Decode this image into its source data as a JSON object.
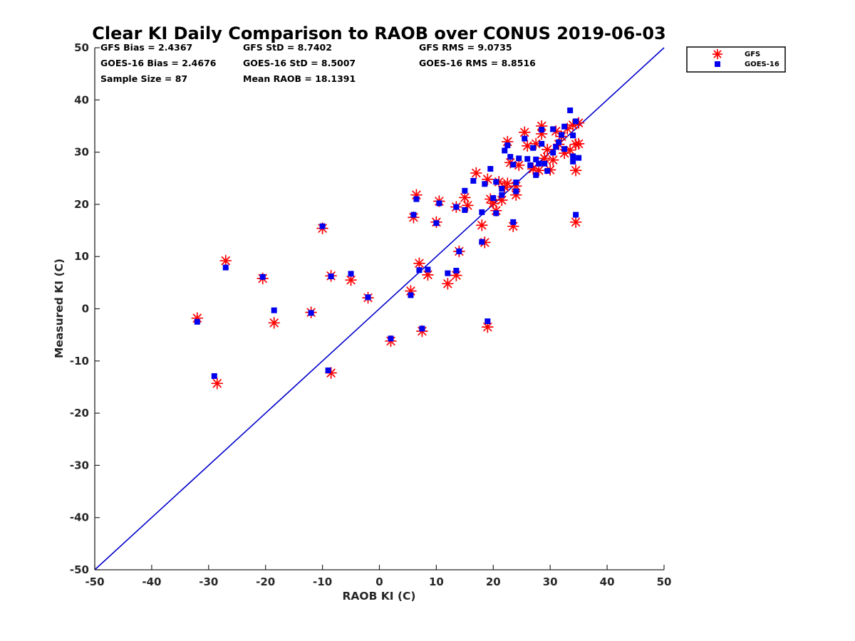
{
  "chart_data": {
    "type": "scatter",
    "title": "Clear KI Daily Comparison to RAOB over CONUS 2019-06-03",
    "xlabel": "RAOB KI (C)",
    "ylabel": "Measured KI (C)",
    "xlim": [
      -50,
      50
    ],
    "ylim": [
      -50,
      50
    ],
    "xticks": [
      "-50",
      "-40",
      "-30",
      "-20",
      "-10",
      "0",
      "10",
      "20",
      "30",
      "40",
      "50"
    ],
    "yticks": [
      "50",
      "40",
      "30",
      "20",
      "10",
      "0",
      "-10",
      "-20",
      "-30",
      "-40",
      "-50"
    ],
    "grid": false,
    "legend_position": "outside-top-right",
    "reference_line": {
      "type": "one-to-one",
      "color": "#0000cc"
    },
    "stats": {
      "gfs_bias": "GFS Bias = 2.4367",
      "gfs_std": "GFS StD = 8.7402",
      "gfs_rms": "GFS RMS = 9.0735",
      "goes_bias": "GOES-16 Bias = 2.4676",
      "goes_std": "GOES-16 StD = 8.5007",
      "goes_rms": "GOES-16 RMS = 8.8516",
      "sample_size": "Sample Size = 87",
      "mean_raob": "Mean RAOB = 18.1391"
    },
    "series": [
      {
        "name": "GFS",
        "marker": "asterisk",
        "color": "#ff0000",
        "points": [
          [
            -32,
            -1.8
          ],
          [
            -28.5,
            -14.3
          ],
          [
            -27,
            9.2
          ],
          [
            -20.5,
            5.8
          ],
          [
            -18.5,
            -2.7
          ],
          [
            -12,
            -0.7
          ],
          [
            -10,
            15.4
          ],
          [
            -8.5,
            -12.3
          ],
          [
            -8.5,
            6.3
          ],
          [
            -5,
            5.5
          ],
          [
            -2,
            2.1
          ],
          [
            2,
            -6.2
          ],
          [
            5.5,
            3.4
          ],
          [
            6,
            17.5
          ],
          [
            6.5,
            21.8
          ],
          [
            7,
            8.7
          ],
          [
            7.5,
            -4.3
          ],
          [
            8.5,
            6.5
          ],
          [
            10,
            16.6
          ],
          [
            10.5,
            20.6
          ],
          [
            12,
            4.8
          ],
          [
            13.5,
            19.5
          ],
          [
            13.5,
            6.4
          ],
          [
            14,
            11
          ],
          [
            15,
            21.3
          ],
          [
            15.5,
            19.8
          ],
          [
            17,
            26
          ],
          [
            18,
            16
          ],
          [
            18.5,
            12.7
          ],
          [
            19,
            24.8
          ],
          [
            19,
            -3.5
          ],
          [
            19.5,
            21
          ],
          [
            20,
            20.2
          ],
          [
            20.5,
            18.8
          ],
          [
            21,
            24.3
          ],
          [
            21.5,
            20.8
          ],
          [
            22,
            23.3
          ],
          [
            22.5,
            32
          ],
          [
            22.5,
            24
          ],
          [
            23,
            28
          ],
          [
            23.5,
            15.8
          ],
          [
            24,
            23.5
          ],
          [
            24,
            21.8
          ],
          [
            24.5,
            27.5
          ],
          [
            25.5,
            33.8
          ],
          [
            26,
            31.2
          ],
          [
            27,
            26.8
          ],
          [
            27.5,
            31.6
          ],
          [
            28,
            26.5
          ],
          [
            28.5,
            35
          ],
          [
            28.5,
            33.5
          ],
          [
            29,
            28.8
          ],
          [
            29.5,
            30.5
          ],
          [
            30,
            26.6
          ],
          [
            30.5,
            28.5
          ],
          [
            31,
            34
          ],
          [
            31.5,
            31.5
          ],
          [
            32,
            33
          ],
          [
            32.5,
            29.8
          ],
          [
            33,
            34.5
          ],
          [
            33.5,
            30.4
          ],
          [
            34,
            35.2
          ],
          [
            34.5,
            26.5
          ],
          [
            34.5,
            31.5
          ],
          [
            34.5,
            16.6
          ],
          [
            35,
            35.6
          ],
          [
            35,
            31.6
          ]
        ]
      },
      {
        "name": "GOES-16",
        "marker": "square",
        "color": "#0000ee",
        "points": [
          [
            -32,
            -2.5
          ],
          [
            -29,
            -12.9
          ],
          [
            -27,
            7.9
          ],
          [
            -20.5,
            6.1
          ],
          [
            -18.5,
            -0.3
          ],
          [
            -12,
            -0.8
          ],
          [
            -10,
            15.8
          ],
          [
            -9,
            -11.8
          ],
          [
            -8.5,
            6.2
          ],
          [
            -5,
            6.7
          ],
          [
            -2,
            2.2
          ],
          [
            2,
            -5.7
          ],
          [
            5.5,
            2.6
          ],
          [
            6,
            18
          ],
          [
            6.5,
            21
          ],
          [
            7,
            7.4
          ],
          [
            7.5,
            -3.8
          ],
          [
            8.5,
            7.5
          ],
          [
            10,
            16.4
          ],
          [
            10.5,
            20.2
          ],
          [
            12,
            6.8
          ],
          [
            13.5,
            19.5
          ],
          [
            13.5,
            7.3
          ],
          [
            14,
            11
          ],
          [
            15,
            22.6
          ],
          [
            15,
            18.9
          ],
          [
            16.5,
            24.5
          ],
          [
            18,
            18.5
          ],
          [
            18,
            12.8
          ],
          [
            18.5,
            23.9
          ],
          [
            19,
            -2.4
          ],
          [
            19.5,
            26.8
          ],
          [
            20,
            21.2
          ],
          [
            20.5,
            18.3
          ],
          [
            20.5,
            24.3
          ],
          [
            21.5,
            21.8
          ],
          [
            21.5,
            23
          ],
          [
            22,
            30.3
          ],
          [
            22.5,
            31.3
          ],
          [
            23,
            29.1
          ],
          [
            23.5,
            16.6
          ],
          [
            23.5,
            27.6
          ],
          [
            24,
            24.2
          ],
          [
            24,
            22.5
          ],
          [
            24.5,
            28.8
          ],
          [
            25.5,
            32.6
          ],
          [
            26,
            28.7
          ],
          [
            26.5,
            27.5
          ],
          [
            27,
            30.8
          ],
          [
            27.5,
            25.6
          ],
          [
            27.5,
            28.6
          ],
          [
            28,
            27.8
          ],
          [
            28.5,
            34.3
          ],
          [
            28.5,
            31.6
          ],
          [
            29,
            27.8
          ],
          [
            29.5,
            26.4
          ],
          [
            30.5,
            29.9
          ],
          [
            30.5,
            34.4
          ],
          [
            31,
            31
          ],
          [
            31.5,
            31.9
          ],
          [
            32,
            33.3
          ],
          [
            32.5,
            34.9
          ],
          [
            32.5,
            30.6
          ],
          [
            33.5,
            38
          ],
          [
            34,
            33.2
          ],
          [
            34,
            28.2
          ],
          [
            34,
            29.2
          ],
          [
            34.5,
            18
          ],
          [
            35,
            28.9
          ],
          [
            34.5,
            35.9
          ]
        ]
      }
    ]
  }
}
